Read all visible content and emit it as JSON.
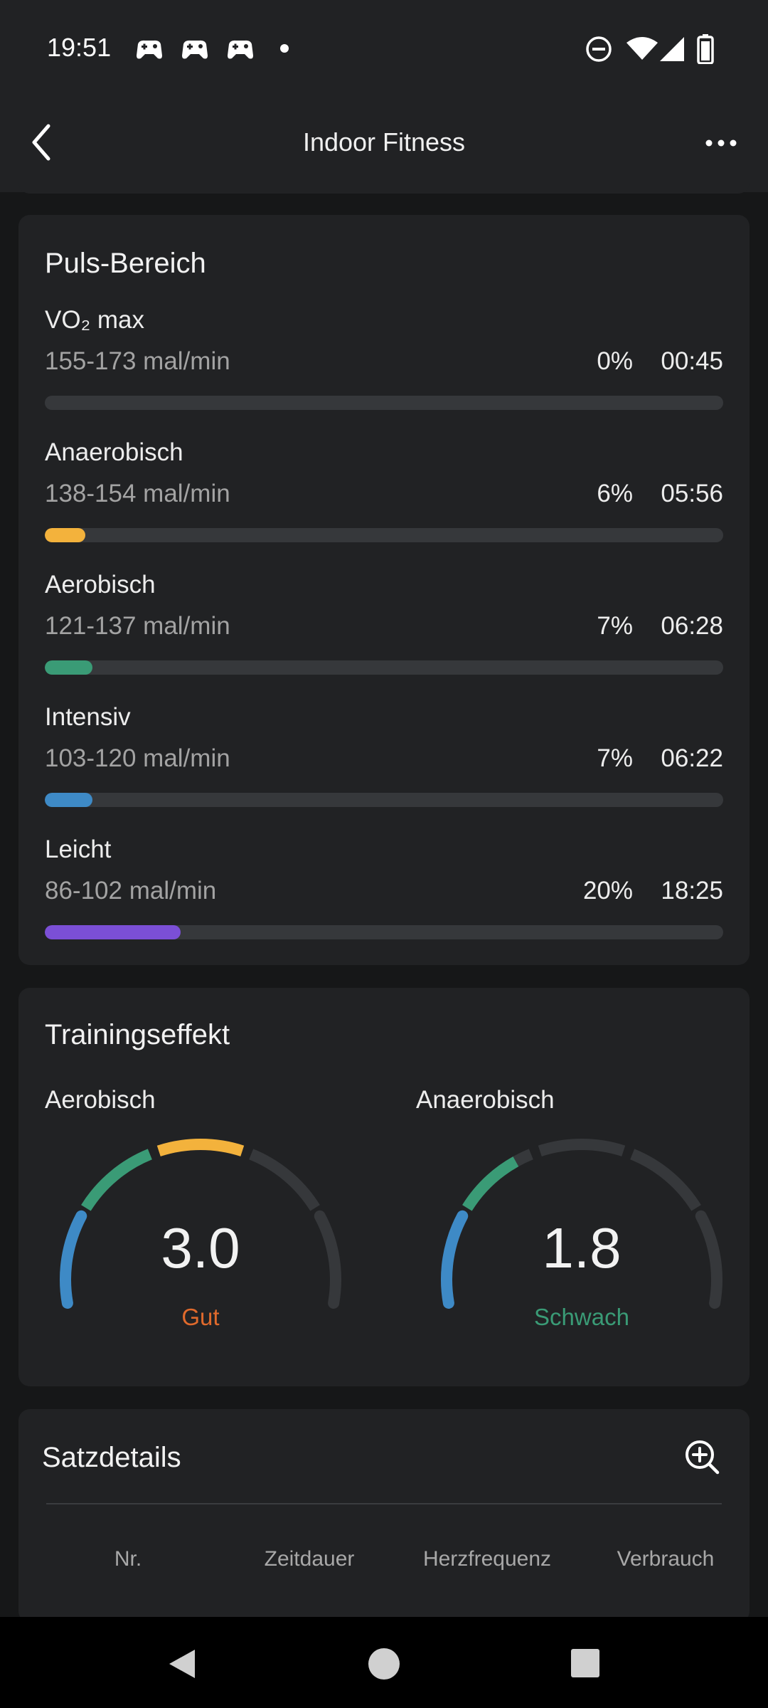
{
  "status_bar": {
    "time": "19:51",
    "icons": [
      "game-controller-icon",
      "game-controller-icon",
      "game-controller-icon",
      "notification-dot-icon",
      "do-not-disturb-icon",
      "wifi-icon",
      "cellular-signal-icon",
      "battery-icon"
    ]
  },
  "header": {
    "title": "Indoor Fitness",
    "back_icon": "chevron-left-icon",
    "more_icon": "more-horizontal-icon"
  },
  "heart_zones": {
    "title": "Puls-Bereich",
    "zones": [
      {
        "name": "VO₂ max",
        "range": "155-173 mal/min",
        "percent": "0%",
        "time": "00:45",
        "progress": 0.0,
        "color": "#e8e8e8"
      },
      {
        "name": "Anaerobisch",
        "range": "138-154 mal/min",
        "percent": "6%",
        "time": "05:56",
        "progress": 0.06,
        "color": "#f3b23c"
      },
      {
        "name": "Aerobisch",
        "range": "121-137 mal/min",
        "percent": "7%",
        "time": "06:28",
        "progress": 0.07,
        "color": "#3a9b76"
      },
      {
        "name": "Intensiv",
        "range": "103-120 mal/min",
        "percent": "7%",
        "time": "06:22",
        "progress": 0.07,
        "color": "#3e8ac6"
      },
      {
        "name": "Leicht",
        "range": "86-102 mal/min",
        "percent": "20%",
        "time": "18:25",
        "progress": 0.2,
        "color": "#7b4fd6"
      }
    ]
  },
  "training_effect": {
    "title": "Trainingseffekt",
    "aerobic": {
      "label": "Aerobisch",
      "value": "3.0",
      "status": "Gut",
      "status_color": "#e06a2c",
      "active_segments": 3
    },
    "anaerobic": {
      "label": "Anaerobisch",
      "value": "1.8",
      "status": "Schwach",
      "status_color": "#3a9b76",
      "active_segments": 1.8
    },
    "segment_colors": [
      "#3e8ac6",
      "#3a9b76",
      "#f3b23c",
      "#36383b",
      "#36383b"
    ]
  },
  "set_details": {
    "title": "Satzdetails",
    "zoom_icon": "zoom-in-icon",
    "columns": [
      "Nr.",
      "Zeitdauer",
      "Herzfrequenz",
      "Verbrauch"
    ]
  },
  "navbar": {
    "icons": [
      "back-triangle-icon",
      "home-circle-icon",
      "recents-square-icon"
    ]
  }
}
